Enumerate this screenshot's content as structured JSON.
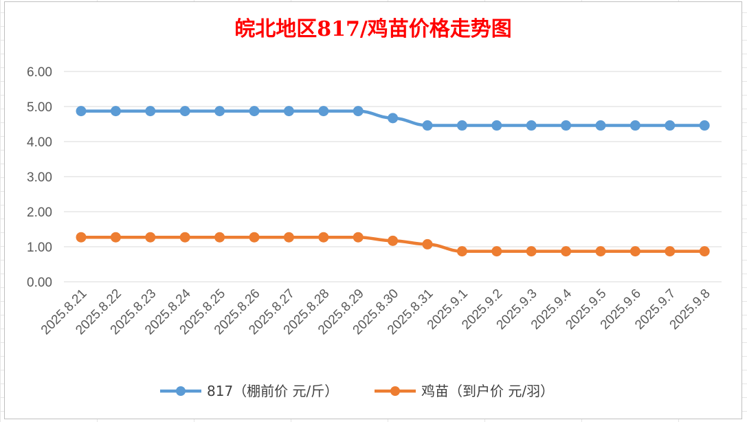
{
  "chart_data": {
    "type": "line",
    "title": "皖北地区817/鸡苗价格走势图",
    "title_color": "#ff0000",
    "categories": [
      "2025.8.21",
      "2025.8.22",
      "2025.8.23",
      "2025.8.24",
      "2025.8.25",
      "2025.8.26",
      "2025.8.27",
      "2025.8.28",
      "2025.8.29",
      "2025.8.30",
      "2025.8.31",
      "2025.9.1",
      "2025.9.2",
      "2025.9.3",
      "2025.9.4",
      "2025.9.5",
      "2025.9.6",
      "2025.9.7",
      "2025.9.8"
    ],
    "ylim": [
      0,
      6
    ],
    "yticks": [
      "0.00",
      "1.00",
      "2.00",
      "3.00",
      "4.00",
      "5.00",
      "6.00"
    ],
    "grid": true,
    "legend_position": "bottom",
    "series": [
      {
        "name": "817（棚前价 元/斤）",
        "color": "#5b9bd5",
        "values": [
          4.87,
          4.87,
          4.87,
          4.87,
          4.87,
          4.87,
          4.87,
          4.87,
          4.87,
          4.67,
          4.46,
          4.46,
          4.46,
          4.46,
          4.46,
          4.46,
          4.46,
          4.46,
          4.46
        ]
      },
      {
        "name": "鸡苗（到户价 元/羽）",
        "color": "#ed7d31",
        "values": [
          1.27,
          1.27,
          1.27,
          1.27,
          1.27,
          1.27,
          1.27,
          1.27,
          1.27,
          1.17,
          1.07,
          0.87,
          0.87,
          0.87,
          0.87,
          0.87,
          0.87,
          0.87,
          0.87
        ]
      }
    ]
  }
}
